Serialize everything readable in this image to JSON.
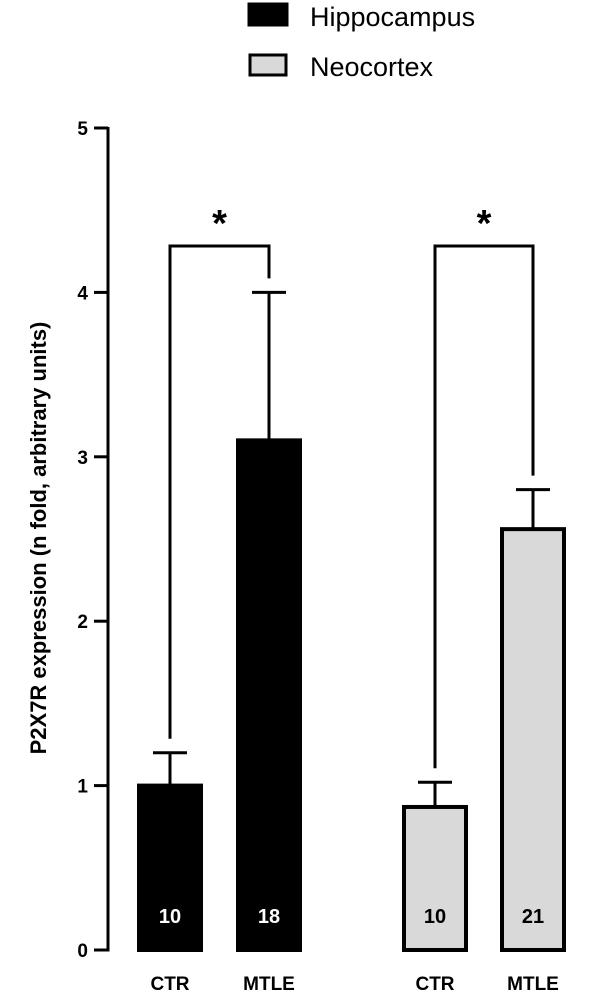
{
  "chart_data": {
    "type": "bar",
    "ylabel": "P2X7R expression (n fold, arbitrary units)",
    "ylim": [
      0,
      5
    ],
    "yticks": [
      0,
      1,
      2,
      3,
      4,
      5
    ],
    "legend": {
      "position": "top-right"
    },
    "series": [
      {
        "name": "Hippocampus",
        "color": "#000000",
        "label_color": "#ffffff"
      },
      {
        "name": "Neocortex",
        "color": "#d9d9d9",
        "label_color": "#000000"
      }
    ],
    "bars": [
      {
        "category": "CTR",
        "series": 0,
        "value": 1.0,
        "error": 0.2,
        "n": "10"
      },
      {
        "category": "MTLE",
        "series": 0,
        "value": 3.1,
        "error": 0.9,
        "n": "18"
      },
      {
        "category": "CTR",
        "series": 1,
        "value": 0.87,
        "error": 0.15,
        "n": "10"
      },
      {
        "category": "MTLE",
        "series": 1,
        "value": 2.56,
        "error": 0.24,
        "n": "21"
      }
    ],
    "significance": [
      {
        "from": 0,
        "to": 1,
        "label": "*"
      },
      {
        "from": 2,
        "to": 3,
        "label": "*"
      }
    ]
  }
}
